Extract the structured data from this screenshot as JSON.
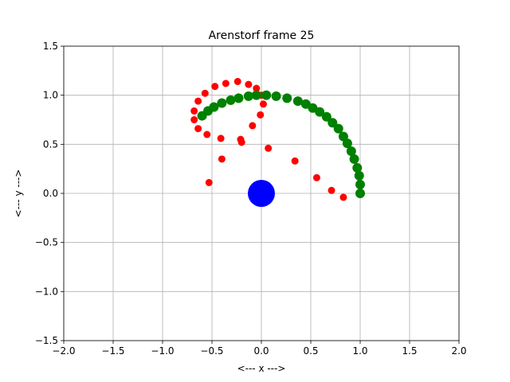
{
  "chart_data": {
    "type": "scatter",
    "title": "Arenstorf frame 25",
    "xlabel": "<---  x  --->",
    "ylabel": "<---  y  --->",
    "xlim": [
      -2.0,
      2.0
    ],
    "ylim": [
      -1.5,
      1.5
    ],
    "xticks": [
      -2.0,
      -1.5,
      -1.0,
      -0.5,
      0.0,
      0.5,
      1.0,
      1.5,
      2.0
    ],
    "xtick_labels": [
      "−2.0",
      "−1.5",
      "−1.0",
      "−0.5",
      "0.0",
      "0.5",
      "1.0",
      "1.5",
      "2.0"
    ],
    "yticks": [
      -1.5,
      -1.0,
      -0.5,
      0.0,
      0.5,
      1.0,
      1.5
    ],
    "ytick_labels": [
      "−1.5",
      "−1.0",
      "−0.5",
      "0.0",
      "0.5",
      "1.0",
      "1.5"
    ],
    "grid": true,
    "series": [
      {
        "color": "#ff0000",
        "marker_size": "small",
        "points": [
          [
            0.99,
            0.0
          ],
          [
            0.83,
            -0.04
          ],
          [
            0.71,
            0.03
          ],
          [
            0.56,
            0.16
          ],
          [
            0.34,
            0.33
          ],
          [
            0.07,
            0.46
          ],
          [
            -0.2,
            0.52
          ],
          [
            -0.4,
            0.35
          ],
          [
            -0.53,
            0.11
          ],
          [
            -0.21,
            0.55
          ],
          [
            -0.09,
            0.69
          ],
          [
            -0.01,
            0.8
          ],
          [
            0.02,
            0.91
          ],
          [
            0.0,
            1.0
          ],
          [
            -0.05,
            1.07
          ],
          [
            -0.13,
            1.11
          ],
          [
            -0.24,
            1.14
          ],
          [
            -0.36,
            1.12
          ],
          [
            -0.47,
            1.09
          ],
          [
            -0.57,
            1.02
          ],
          [
            -0.64,
            0.94
          ],
          [
            -0.68,
            0.84
          ],
          [
            -0.68,
            0.75
          ],
          [
            -0.64,
            0.66
          ],
          [
            -0.55,
            0.6
          ],
          [
            -0.41,
            0.56
          ]
        ]
      },
      {
        "color": "#008000",
        "marker_size": "medium",
        "points": [
          [
            1.0,
            0.0
          ],
          [
            1.0,
            0.09
          ],
          [
            0.99,
            0.18
          ],
          [
            0.97,
            0.26
          ],
          [
            0.94,
            0.35
          ],
          [
            0.91,
            0.43
          ],
          [
            0.87,
            0.51
          ],
          [
            0.83,
            0.58
          ],
          [
            0.78,
            0.66
          ],
          [
            0.72,
            0.72
          ],
          [
            0.66,
            0.78
          ],
          [
            0.59,
            0.83
          ],
          [
            0.52,
            0.87
          ],
          [
            0.45,
            0.91
          ],
          [
            0.37,
            0.94
          ],
          [
            0.26,
            0.97
          ],
          [
            0.15,
            0.99
          ],
          [
            0.05,
            1.0
          ],
          [
            -0.05,
            1.0
          ],
          [
            -0.13,
            0.99
          ],
          [
            -0.23,
            0.97
          ],
          [
            -0.31,
            0.95
          ],
          [
            -0.4,
            0.92
          ],
          [
            -0.48,
            0.88
          ],
          [
            -0.54,
            0.84
          ],
          [
            -0.6,
            0.79
          ]
        ]
      },
      {
        "color": "#0000ff",
        "marker_size": "large",
        "points": [
          [
            0.0,
            0.0
          ]
        ]
      }
    ]
  }
}
